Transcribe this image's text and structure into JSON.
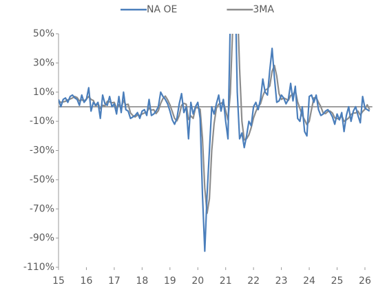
{
  "chart_data": {
    "type": "line",
    "categories": [
      "15",
      null,
      null,
      null,
      null,
      null,
      null,
      null,
      null,
      null,
      null,
      null,
      "16",
      null,
      null,
      null,
      null,
      null,
      null,
      null,
      null,
      null,
      null,
      null,
      "17",
      null,
      null,
      null,
      null,
      null,
      null,
      null,
      null,
      null,
      null,
      null,
      "18",
      null,
      null,
      null,
      null,
      null,
      null,
      null,
      null,
      null,
      null,
      null,
      "19",
      null,
      null,
      null,
      null,
      null,
      null,
      null,
      null,
      null,
      null,
      null,
      "20",
      null,
      null,
      null,
      null,
      null,
      null,
      null,
      null,
      null,
      null,
      null,
      "21",
      null,
      null,
      null,
      null,
      null,
      null,
      null,
      null,
      null,
      null,
      null,
      "22",
      null,
      null,
      null,
      null,
      null,
      null,
      null,
      null,
      null,
      null,
      null,
      "23",
      null,
      null,
      null,
      null,
      null,
      null,
      null,
      null,
      null,
      null,
      null,
      "24",
      null,
      null,
      null,
      null,
      null,
      null,
      null,
      null,
      null,
      null,
      null,
      "25",
      null,
      null,
      null,
      null,
      null,
      null,
      null,
      null,
      null,
      null,
      null,
      "26",
      null,
      null
    ],
    "series": [
      {
        "name": "NA OE",
        "color": "#4a7ebb",
        "values": [
          5,
          0,
          5,
          6,
          3,
          7,
          8,
          6,
          5,
          1,
          8,
          3,
          5,
          13,
          -3,
          3,
          1,
          3,
          -8,
          8,
          2,
          1,
          7,
          0,
          2,
          -5,
          7,
          -4,
          10,
          -2,
          -3,
          -8,
          -7,
          -6,
          -4,
          -8,
          -3,
          -2,
          -6,
          5,
          -6,
          -5,
          -3,
          0,
          10,
          7,
          5,
          2,
          -3,
          -9,
          -12,
          -8,
          2,
          9,
          -4,
          0,
          -22,
          3,
          -5,
          0,
          3,
          -8,
          -60,
          -99,
          -60,
          -30,
          0,
          -5,
          2,
          8,
          -3,
          5,
          -10,
          -22,
          60,
          120,
          90,
          10,
          -22,
          -18,
          -28,
          -20,
          -10,
          -13,
          0,
          3,
          -2,
          5,
          19,
          10,
          8,
          25,
          40,
          20,
          3,
          4,
          8,
          6,
          2,
          5,
          16,
          4,
          14,
          -8,
          -10,
          0,
          -17,
          -20,
          7,
          8,
          3,
          8,
          -2,
          -6,
          -5,
          -3,
          -2,
          -4,
          -7,
          -12,
          -5,
          -9,
          -4,
          -17,
          -6,
          0,
          -10,
          -3,
          0,
          -6,
          -11,
          7,
          -1,
          -2,
          -3
        ]
      },
      {
        "name": "3MA",
        "color": "#8c8c8c",
        "values": [
          4,
          3,
          3.3,
          3.7,
          4.7,
          5.3,
          6,
          7,
          6.3,
          4,
          4.7,
          4,
          5.3,
          7,
          5,
          4.3,
          0.3,
          2.3,
          -1.3,
          1,
          0.7,
          3.7,
          3.3,
          2.7,
          3,
          -1,
          1.3,
          -0.7,
          4.3,
          1.3,
          1.7,
          -4.3,
          -6,
          -7,
          -5.7,
          -6,
          -5,
          -4.3,
          -3.7,
          -1,
          -2.3,
          -2,
          -4.7,
          -2.7,
          2.3,
          5.7,
          7.3,
          4.7,
          1.3,
          -3.3,
          -8,
          -9.7,
          -6,
          1,
          2.3,
          1.7,
          -8.7,
          -6.3,
          -8,
          -0.7,
          -0.7,
          -1.7,
          -21.7,
          -55.7,
          -73,
          -63,
          -30,
          -11.7,
          -1,
          1.7,
          2.3,
          3.3,
          -2.7,
          -9,
          9.3,
          52.7,
          90,
          73.3,
          26,
          -10,
          -22.7,
          -22,
          -19.3,
          -14.3,
          -7.7,
          -3.3,
          0.3,
          2,
          7.3,
          11.3,
          12.3,
          14.3,
          24.3,
          28.3,
          21,
          9,
          5,
          6,
          5.3,
          4.3,
          7.7,
          8.3,
          11.3,
          3.3,
          -1.3,
          -6,
          -9,
          -12.3,
          -10,
          -1.7,
          6,
          6.3,
          3,
          0,
          -4.3,
          -4.7,
          -3.3,
          -3,
          -4.3,
          -7.7,
          -8,
          -8.7,
          -6,
          -10,
          -9,
          -7.7,
          -5.3,
          -4.3,
          -4.3,
          -3,
          -5.7,
          -3.3,
          -1.7,
          1.3,
          -2
        ]
      }
    ],
    "ylim": [
      -110,
      50
    ],
    "yticks": [
      {
        "value": 50,
        "label": "50%"
      },
      {
        "value": 30,
        "label": "30%"
      },
      {
        "value": 10,
        "label": "10%"
      },
      {
        "value": -10,
        "label": "-10%"
      },
      {
        "value": -30,
        "label": "-30%"
      },
      {
        "value": -50,
        "label": "-50%"
      },
      {
        "value": -70,
        "label": "-70%"
      },
      {
        "value": -90,
        "label": "-90%"
      },
      {
        "value": -110,
        "label": "-110%"
      }
    ],
    "grid": false,
    "legend": "top"
  }
}
